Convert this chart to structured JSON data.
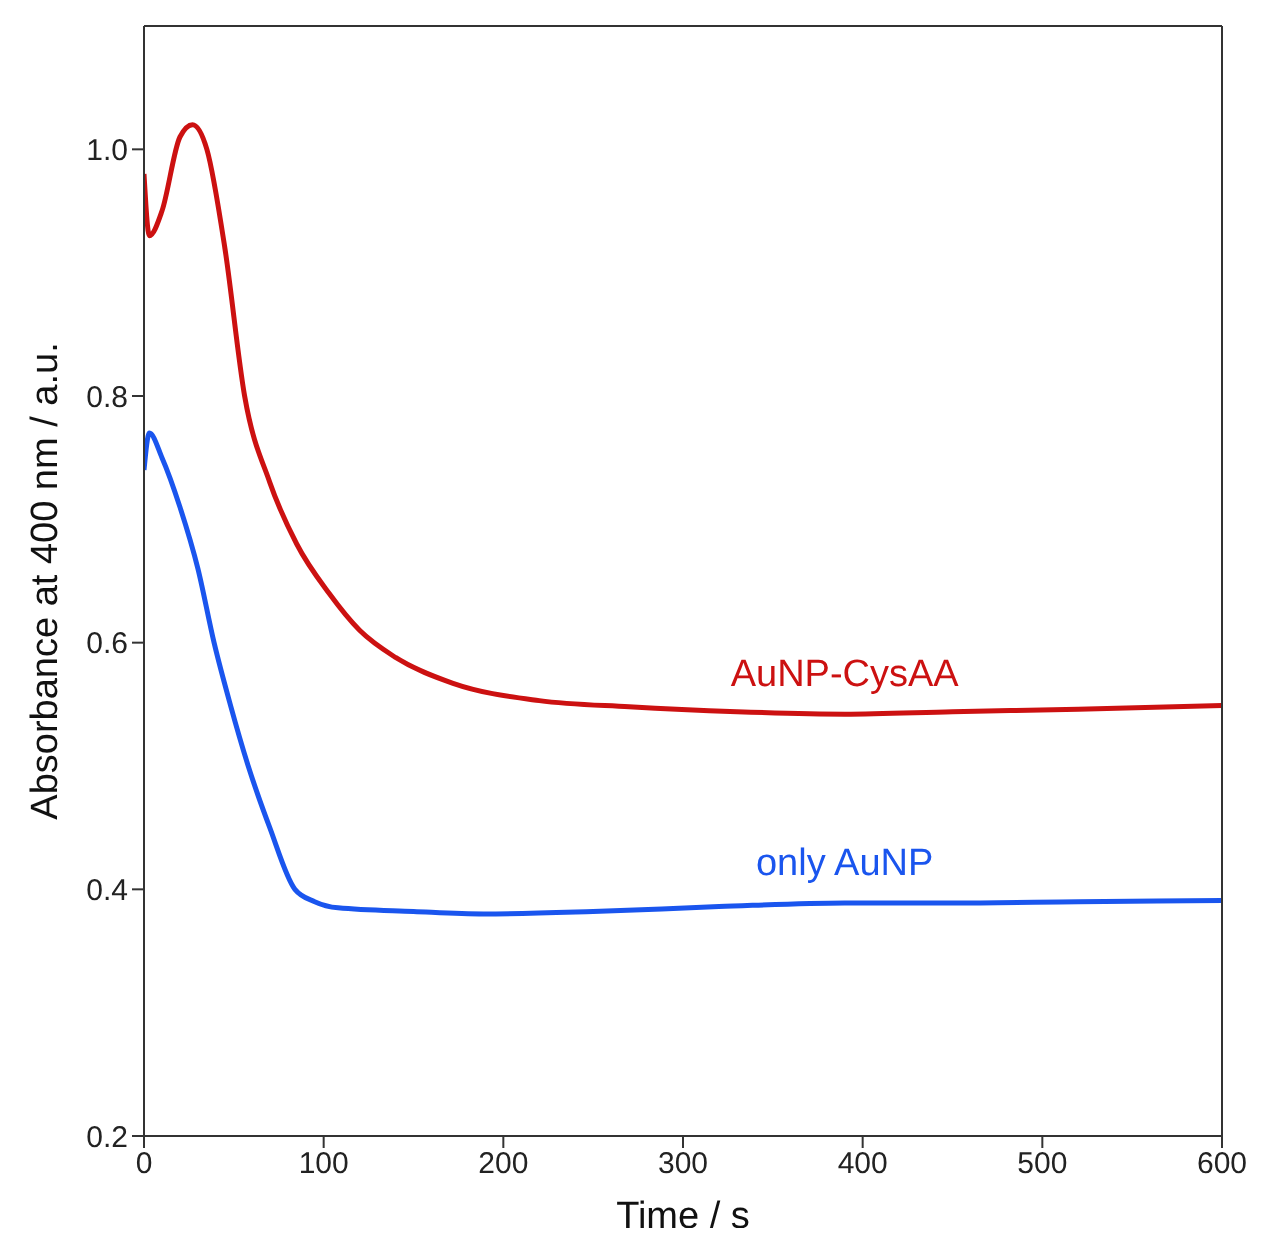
{
  "chart_data": {
    "type": "line",
    "xlabel": "Time / s",
    "ylabel": "Absorbance at 400 nm / a.u.",
    "xlim": [
      0,
      600
    ],
    "xticks": [
      0,
      100,
      200,
      300,
      400,
      500,
      600
    ],
    "ylim": [
      0.2,
      1.1
    ],
    "yticks": [
      {
        "value": 0.2,
        "label": "0.2"
      },
      {
        "value": 0.4,
        "label": "0.4"
      },
      {
        "value": 0.6,
        "label": "0.6"
      },
      {
        "value": 0.8,
        "label": "0.8"
      },
      {
        "value": 1.0,
        "label": "1.0"
      }
    ],
    "series": [
      {
        "name": "AuNP-CysAA",
        "color": "#cc1111",
        "x": [
          0,
          3,
          10,
          20,
          27,
          35,
          45,
          56,
          70,
          85,
          103,
          120,
          140,
          172,
          220,
          270,
          330,
          390,
          450,
          520,
          600
        ],
        "values": [
          0.98,
          0.93,
          0.95,
          1.01,
          1.02,
          1.0,
          0.92,
          0.8,
          0.73,
          0.68,
          0.64,
          0.61,
          0.588,
          0.567,
          0.553,
          0.548,
          0.544,
          0.542,
          0.544,
          0.546,
          0.549
        ]
      },
      {
        "name": "only AuNP",
        "color": "#1a55ee",
        "x": [
          0,
          3,
          10,
          20,
          30,
          39,
          48,
          58,
          70,
          84,
          95,
          108,
          150,
          189,
          250,
          320,
          390,
          450,
          520,
          600
        ],
        "values": [
          0.74,
          0.77,
          0.75,
          0.71,
          0.66,
          0.6,
          0.55,
          0.5,
          0.45,
          0.4,
          0.39,
          0.385,
          0.382,
          0.38,
          0.382,
          0.386,
          0.389,
          0.389,
          0.39,
          0.391
        ]
      }
    ]
  }
}
